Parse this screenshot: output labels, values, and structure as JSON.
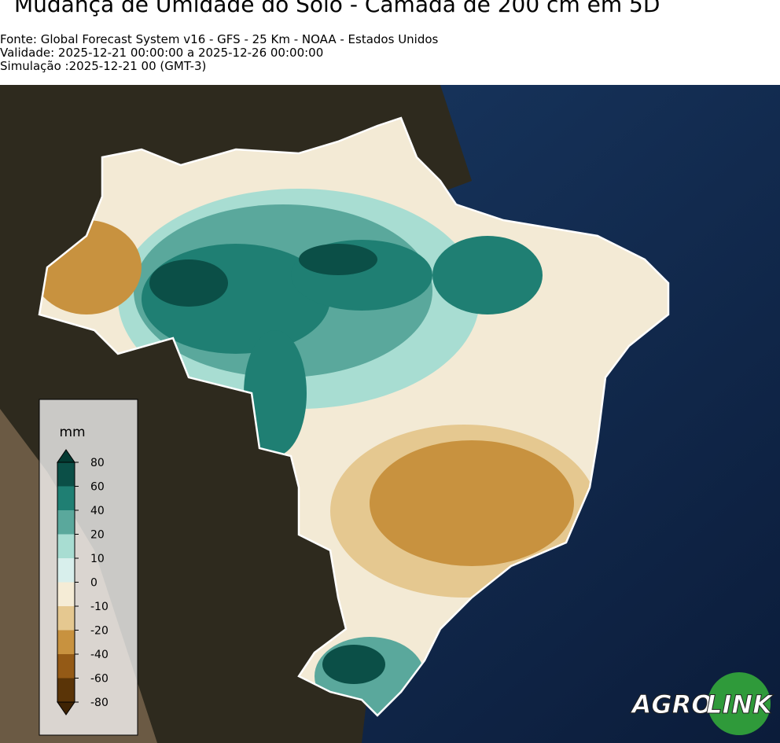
{
  "header": {
    "title": "Mudança de Umidade do Solo - Camada de 200 cm em 5D",
    "lines": [
      "Fonte: Global Forecast System v16 - GFS - 25 Km - NOAA - Estados Unidos",
      "Validade: 2025-12-21 00:00:00 a 2025-12-26 00:00:00",
      "Simulação :2025-12-21 00 (GMT-3)"
    ]
  },
  "colorbar": {
    "unit": "mm",
    "ticks": [
      80,
      60,
      40,
      20,
      10,
      0,
      -10,
      -20,
      -40,
      -60,
      -80
    ],
    "colors": [
      "#0b4f47",
      "#1f7f73",
      "#5aa89c",
      "#a8ddd2",
      "#d8efec",
      "#f5ecd6",
      "#e5c890",
      "#c8923f",
      "#945a16",
      "#5a3407"
    ],
    "over_color": "#033a32",
    "under_color": "#3e2303"
  },
  "logo": {
    "left": "AGRO",
    "right": "LINK"
  }
}
